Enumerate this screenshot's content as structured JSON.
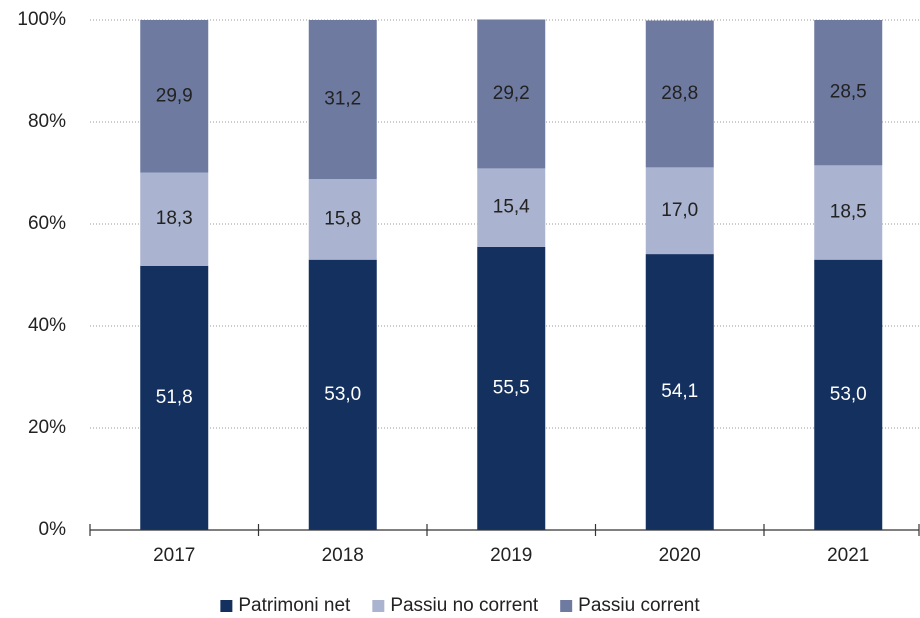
{
  "chart_data": {
    "type": "stacked_bar",
    "categories": [
      "2017",
      "2018",
      "2019",
      "2020",
      "2021"
    ],
    "series": [
      {
        "name": "Patrimoni net",
        "color": "#14305e",
        "values": [
          51.8,
          53.0,
          55.5,
          54.1,
          53.0
        ],
        "value_labels": [
          "51,8",
          "53,0",
          "55,5",
          "54,1",
          "53,0"
        ]
      },
      {
        "name": "Passiu no corrent",
        "color": "#aab3cf",
        "values": [
          18.3,
          15.8,
          15.4,
          17.0,
          18.5
        ],
        "value_labels": [
          "18,3",
          "15,8",
          "15,4",
          "17,0",
          "18,5"
        ]
      },
      {
        "name": "Passiu corrent",
        "color": "#6e7aa0",
        "values": [
          29.9,
          31.2,
          29.2,
          28.8,
          28.5
        ],
        "value_labels": [
          "29,9",
          "31,2",
          "29,2",
          "28,8",
          "28,5"
        ]
      }
    ],
    "ylim": [
      0,
      100
    ],
    "yticks": [
      {
        "value": 0,
        "label": "0%"
      },
      {
        "value": 20,
        "label": "20%"
      },
      {
        "value": 40,
        "label": "40%"
      },
      {
        "value": 60,
        "label": "60%"
      },
      {
        "value": 80,
        "label": "80%"
      },
      {
        "value": 100,
        "label": "100%"
      }
    ],
    "grid": true,
    "legend": "bottom"
  }
}
